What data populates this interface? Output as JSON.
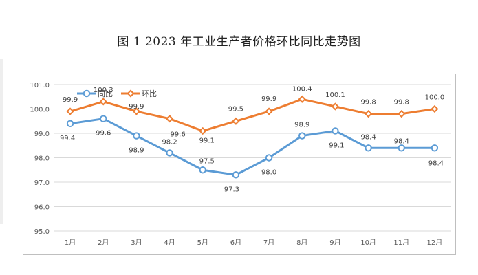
{
  "page": {
    "title": "图 1    2023 年工业生产者价格环比同比走势图"
  },
  "chart_data": {
    "type": "line",
    "categories": [
      "1月",
      "2月",
      "3月",
      "4月",
      "5月",
      "6月",
      "7月",
      "8月",
      "9月",
      "10月",
      "11月",
      "12月"
    ],
    "ylim": [
      95.0,
      101.0
    ],
    "yticks": [
      "95.0",
      "96.0",
      "97.0",
      "98.0",
      "99.0",
      "100.0",
      "101.0"
    ],
    "grid": true,
    "legend_position": "top-left",
    "series": [
      {
        "name": "同比",
        "color": "#5b9bd5",
        "marker": "circle",
        "values": [
          99.4,
          99.6,
          98.9,
          98.2,
          97.5,
          97.3,
          98.0,
          98.9,
          99.1,
          98.4,
          98.4,
          98.4
        ],
        "labels": [
          "99.4",
          "99.6",
          "98.9",
          "98.2",
          "97.5",
          "97.3",
          "98.0",
          "98.9",
          "99.1",
          "98.4",
          "98.4",
          "98.4"
        ]
      },
      {
        "name": "环比",
        "color": "#ed7d31",
        "marker": "diamond",
        "values": [
          99.9,
          100.3,
          99.9,
          99.6,
          99.1,
          99.5,
          99.9,
          100.4,
          100.1,
          99.8,
          99.8,
          100.0
        ],
        "labels": [
          "99.9",
          "100.3",
          "99.9",
          "99.6",
          "99.1",
          "99.5",
          "99.9",
          "100.4",
          "100.1",
          "99.8",
          "99.8",
          "100.0"
        ]
      }
    ]
  }
}
